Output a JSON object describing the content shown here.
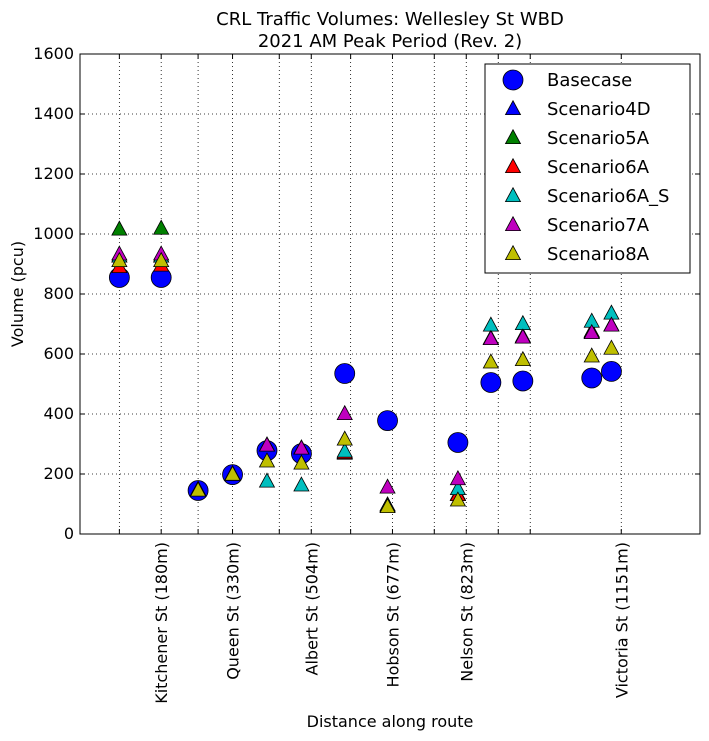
{
  "chart_data": {
    "type": "scatter",
    "title": "CRL Traffic Volumes: Wellesley St WBD",
    "subtitle": "2021 AM Peak Period (Rev. 2)",
    "xlabel": "Distance along route",
    "ylabel": "Volume (pcu)",
    "xlim": [
      -60,
      1200
    ],
    "ylim": [
      0,
      1600
    ],
    "grid": true,
    "legend_position": "top-right",
    "y_ticks": [
      0,
      200,
      400,
      600,
      800,
      1000,
      1200,
      1400,
      1600
    ],
    "x_ticks": [
      {
        "x": 20,
        "label": ""
      },
      {
        "x": 105,
        "label": "Kitchener St (180m)"
      },
      {
        "x": 180,
        "label": ""
      },
      {
        "x": 250,
        "label": "Queen St (330m)"
      },
      {
        "x": 345,
        "label": ""
      },
      {
        "x": 410,
        "label": "Albert St (504m)"
      },
      {
        "x": 490,
        "label": ""
      },
      {
        "x": 575,
        "label": "Hobson St (677m)"
      },
      {
        "x": 660,
        "label": ""
      },
      {
        "x": 725,
        "label": "Nelson St (823m)"
      },
      {
        "x": 790,
        "label": ""
      },
      {
        "x": 855,
        "label": ""
      },
      {
        "x": 1040,
        "label": "Victoria St (1151m)"
      }
    ],
    "series": [
      {
        "name": "Basecase",
        "marker": "circle",
        "color": "#0000ff",
        "points": [
          [
            20,
            855
          ],
          [
            105,
            855
          ],
          [
            180,
            145
          ],
          [
            250,
            198
          ],
          [
            320,
            278
          ],
          [
            390,
            268
          ],
          [
            478,
            535
          ],
          [
            565,
            378
          ],
          [
            708,
            305
          ],
          [
            775,
            505
          ],
          [
            840,
            510
          ],
          [
            980,
            520
          ],
          [
            1020,
            542
          ]
        ]
      },
      {
        "name": "Scenario4D",
        "marker": "triangle",
        "color": "#0000ff",
        "points": [
          [
            20,
            925
          ],
          [
            105,
            925
          ],
          [
            180,
            145
          ],
          [
            250,
            198
          ],
          [
            320,
            295
          ],
          [
            390,
            285
          ],
          [
            478,
            270
          ],
          [
            565,
            95
          ],
          [
            708,
            130
          ],
          [
            775,
            650
          ],
          [
            840,
            655
          ],
          [
            980,
            675
          ],
          [
            1020,
            695
          ]
        ]
      },
      {
        "name": "Scenario5A",
        "marker": "triangle",
        "color": "#008000",
        "points": [
          [
            20,
            1015
          ],
          [
            105,
            1018
          ],
          [
            180,
            148
          ],
          [
            250,
            200
          ],
          [
            320,
            295
          ],
          [
            390,
            285
          ],
          [
            478,
            268
          ],
          [
            565,
            95
          ],
          [
            708,
            132
          ],
          [
            775,
            652
          ],
          [
            840,
            658
          ],
          [
            980,
            672
          ],
          [
            1020,
            695
          ]
        ]
      },
      {
        "name": "Scenario6A",
        "marker": "triangle",
        "color": "#ff0000",
        "points": [
          [
            20,
            890
          ],
          [
            105,
            895
          ],
          [
            180,
            145
          ],
          [
            250,
            198
          ],
          [
            320,
            295
          ],
          [
            390,
            285
          ],
          [
            478,
            270
          ],
          [
            565,
            95
          ],
          [
            708,
            130
          ],
          [
            775,
            650
          ],
          [
            840,
            655
          ],
          [
            980,
            675
          ],
          [
            1020,
            695
          ]
        ]
      },
      {
        "name": "Scenario6A_S",
        "marker": "triangle",
        "color": "#00bfbf",
        "points": [
          [
            20,
            925
          ],
          [
            105,
            925
          ],
          [
            180,
            145
          ],
          [
            250,
            198
          ],
          [
            320,
            175
          ],
          [
            390,
            162
          ],
          [
            478,
            275
          ],
          [
            565,
            95
          ],
          [
            708,
            150
          ],
          [
            775,
            695
          ],
          [
            840,
            700
          ],
          [
            980,
            708
          ],
          [
            1020,
            735
          ]
        ]
      },
      {
        "name": "Scenario7A",
        "marker": "triangle",
        "color": "#bf00bf",
        "points": [
          [
            20,
            932
          ],
          [
            105,
            932
          ],
          [
            180,
            145
          ],
          [
            250,
            198
          ],
          [
            320,
            295
          ],
          [
            390,
            285
          ],
          [
            478,
            400
          ],
          [
            565,
            155
          ],
          [
            708,
            183
          ],
          [
            775,
            650
          ],
          [
            840,
            655
          ],
          [
            980,
            670
          ],
          [
            1020,
            695
          ]
        ]
      },
      {
        "name": "Scenario8A",
        "marker": "triangle",
        "color": "#bfbf00",
        "points": [
          [
            20,
            910
          ],
          [
            105,
            910
          ],
          [
            180,
            145
          ],
          [
            250,
            198
          ],
          [
            320,
            242
          ],
          [
            390,
            235
          ],
          [
            478,
            315
          ],
          [
            565,
            90
          ],
          [
            708,
            112
          ],
          [
            775,
            572
          ],
          [
            840,
            580
          ],
          [
            980,
            592
          ],
          [
            1020,
            618
          ]
        ]
      }
    ]
  }
}
